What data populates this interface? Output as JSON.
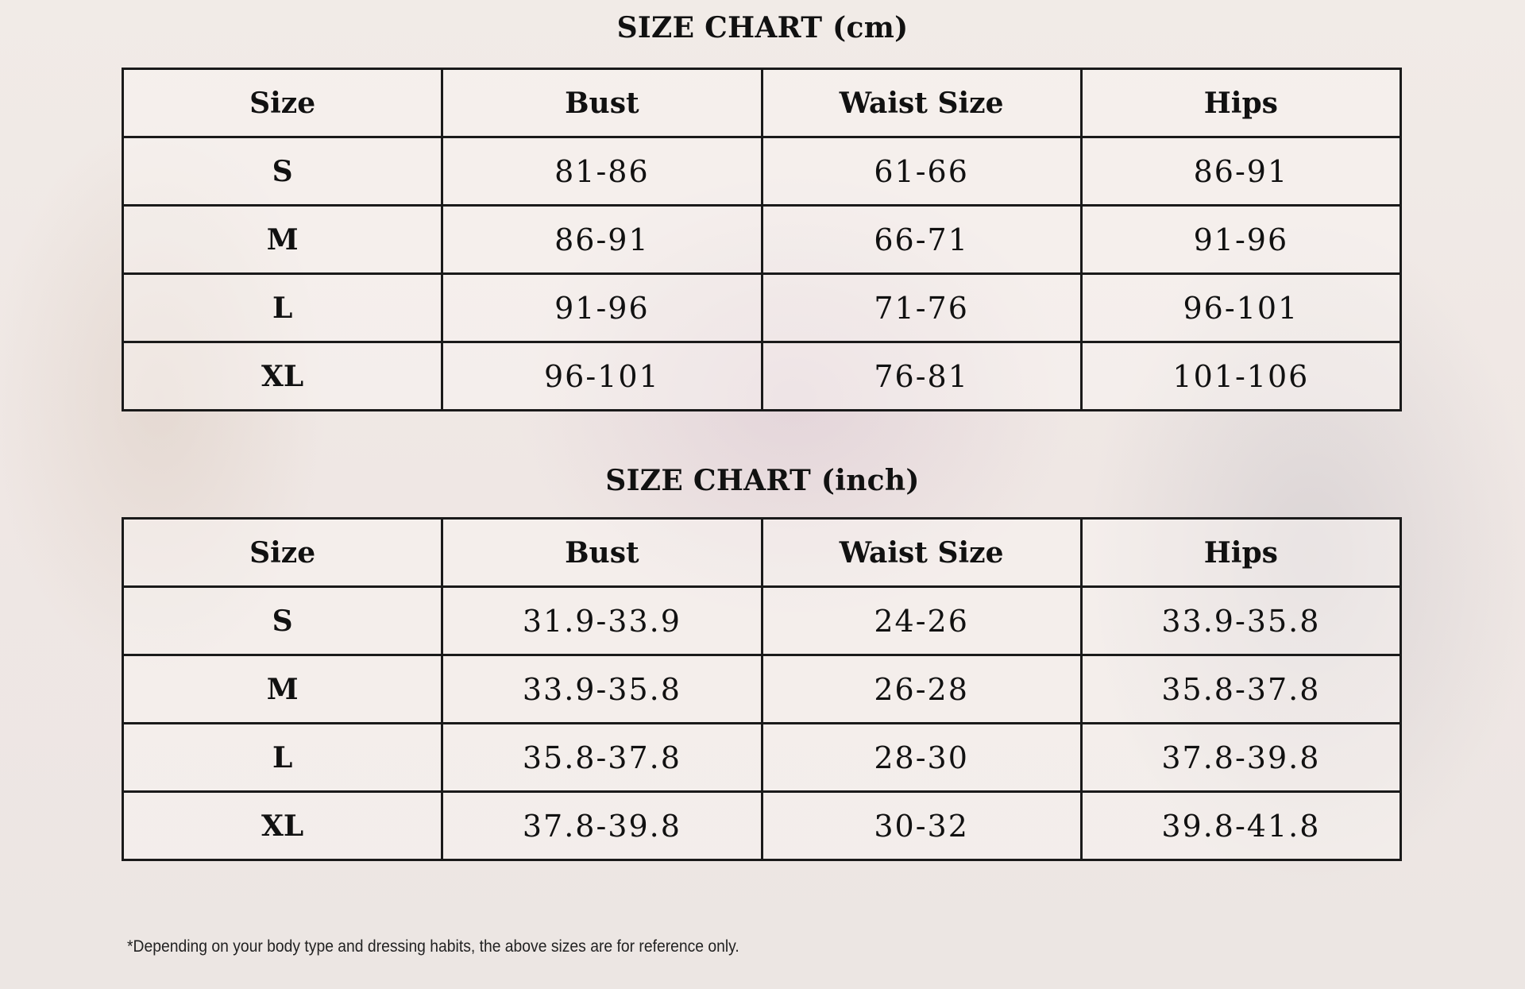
{
  "tables": [
    {
      "title": "SIZE CHART (cm)",
      "headers": [
        "Size",
        "Bust",
        "Waist Size",
        "Hips"
      ],
      "rows": [
        [
          "S",
          "81-86",
          "61-66",
          "86-91"
        ],
        [
          "M",
          "86-91",
          "66-71",
          "91-96"
        ],
        [
          "L",
          "91-96",
          "71-76",
          "96-101"
        ],
        [
          "XL",
          "96-101",
          "76-81",
          "101-106"
        ]
      ]
    },
    {
      "title": "SIZE CHART (inch)",
      "headers": [
        "Size",
        "Bust",
        "Waist Size",
        "Hips"
      ],
      "rows": [
        [
          "S",
          "31.9-33.9",
          "24-26",
          "33.9-35.8"
        ],
        [
          "M",
          "33.9-35.8",
          "26-28",
          "35.8-37.8"
        ],
        [
          "L",
          "35.8-37.8",
          "28-30",
          "37.8-39.8"
        ],
        [
          "XL",
          "37.8-39.8",
          "30-32",
          "39.8-41.8"
        ]
      ]
    }
  ],
  "footnote": "*Depending on your body type and dressing habits, the above sizes are for reference only."
}
